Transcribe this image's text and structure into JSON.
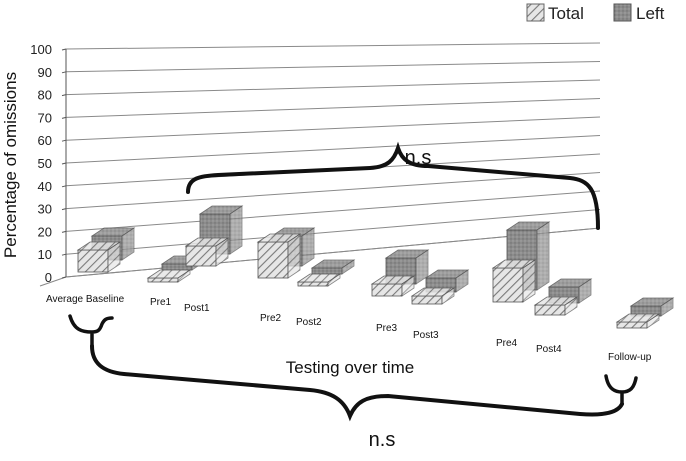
{
  "chart_data": {
    "type": "bar",
    "ylabel": "Percentage of omissions",
    "xlabel": "Testing over time",
    "ylim": [
      0,
      100
    ],
    "yticks": [
      0,
      10,
      20,
      30,
      40,
      50,
      60,
      70,
      80,
      90,
      100
    ],
    "grid": true,
    "legend_position": "top-right",
    "categories": [
      "Average Baseline",
      "Pre1",
      "Post1",
      "Pre2",
      "Post2",
      "Pre3",
      "Post3",
      "Pre4",
      "Post4",
      "Follow-up"
    ],
    "series": [
      {
        "name": "Total",
        "values": [
          11,
          2,
          10,
          18,
          2,
          6,
          4,
          17,
          5,
          3
        ]
      },
      {
        "name": "Left",
        "values": [
          12,
          3,
          20,
          15,
          3,
          13,
          7,
          30,
          8,
          5
        ]
      }
    ],
    "annotations": [
      {
        "text": "n.s",
        "spans": [
          "Pre1",
          "Post4"
        ]
      },
      {
        "text": "n.s",
        "spans": [
          "Average Baseline",
          "Follow-up"
        ]
      }
    ],
    "colors": {
      "total": "#d6d6d6",
      "left": "#8f8f8f",
      "grid": "#8a8a8a"
    }
  }
}
